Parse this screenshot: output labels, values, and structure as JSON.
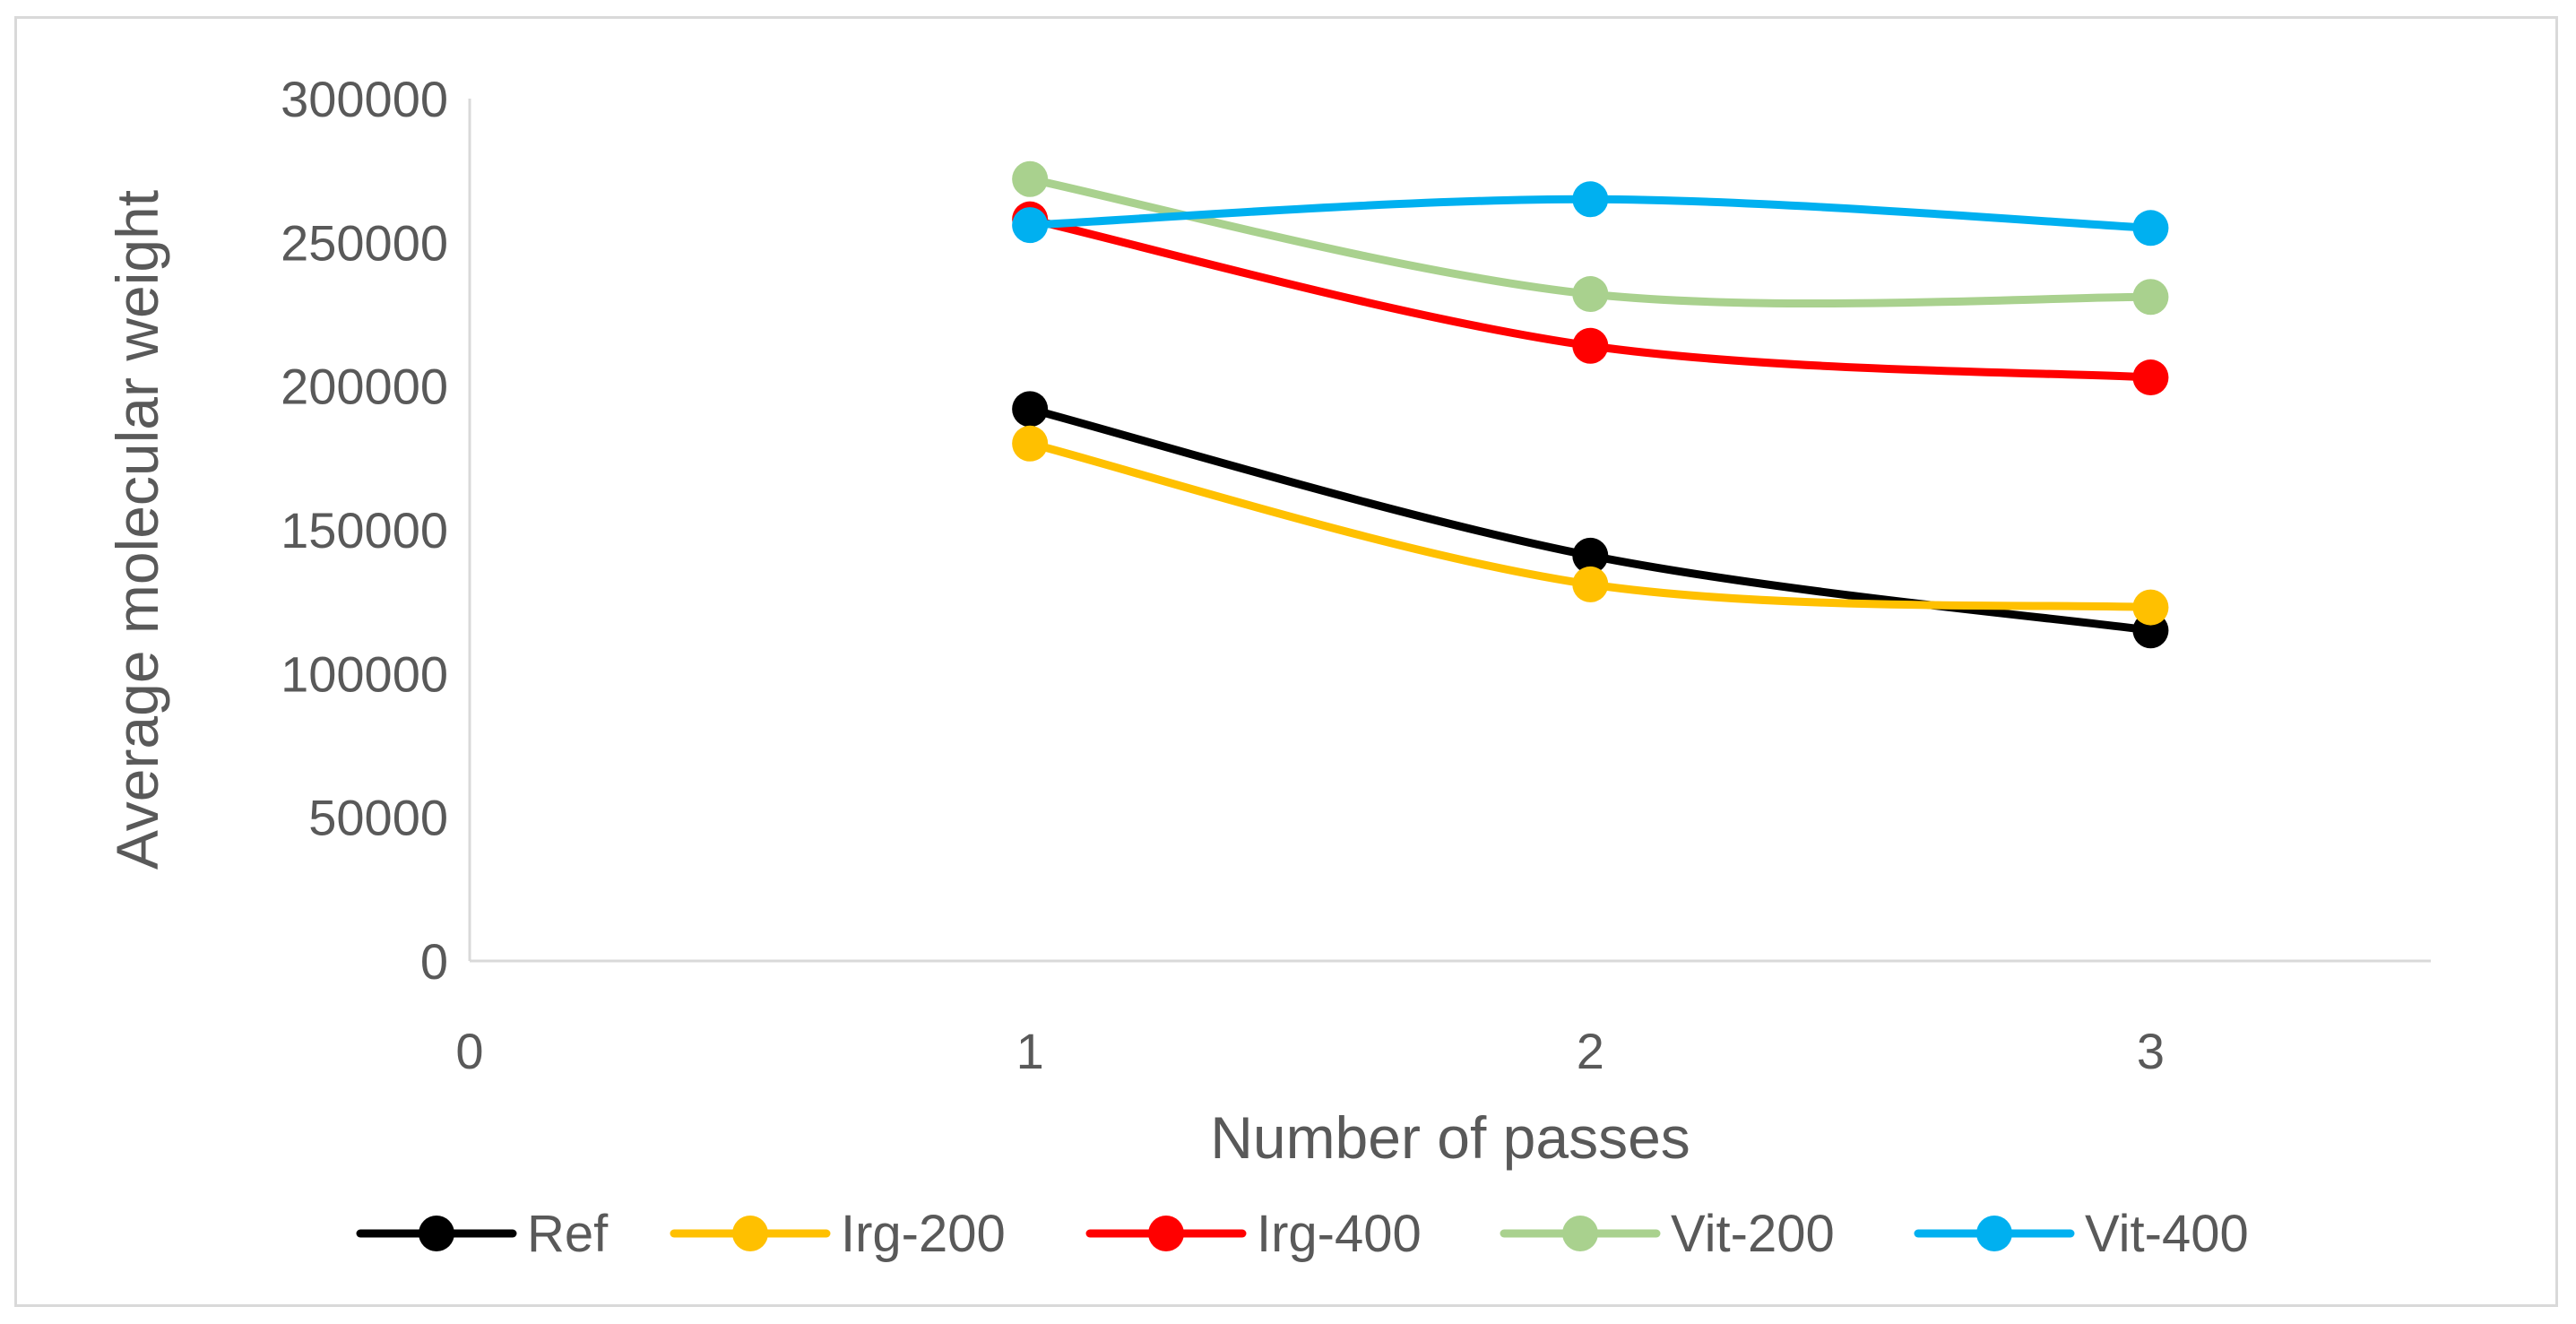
{
  "chart_data": {
    "type": "line",
    "smooth": true,
    "xlabel": "Number of passes",
    "ylabel": "Average molecular weight",
    "xlim": [
      0,
      3.5
    ],
    "ylim": [
      0,
      300000
    ],
    "x_ticks": [
      "0",
      "1",
      "2",
      "3"
    ],
    "y_ticks": [
      "0",
      "50000",
      "100000",
      "150000",
      "200000",
      "250000",
      "300000"
    ],
    "grid": false,
    "legend_position": "bottom",
    "x": [
      1,
      2,
      3
    ],
    "series": [
      {
        "name": "Ref",
        "color": "#000000",
        "values": [
          192000,
          141000,
          115000
        ]
      },
      {
        "name": "Irg-200",
        "color": "#ffc000",
        "values": [
          180000,
          131000,
          123000
        ]
      },
      {
        "name": "Irg-400",
        "color": "#ff0000",
        "values": [
          258000,
          214000,
          203000
        ]
      },
      {
        "name": "Vit-200",
        "color": "#a9d18e",
        "values": [
          272000,
          232000,
          231000
        ]
      },
      {
        "name": "Vit-400",
        "color": "#00b0f0",
        "values": [
          256000,
          265000,
          255000
        ]
      }
    ]
  }
}
